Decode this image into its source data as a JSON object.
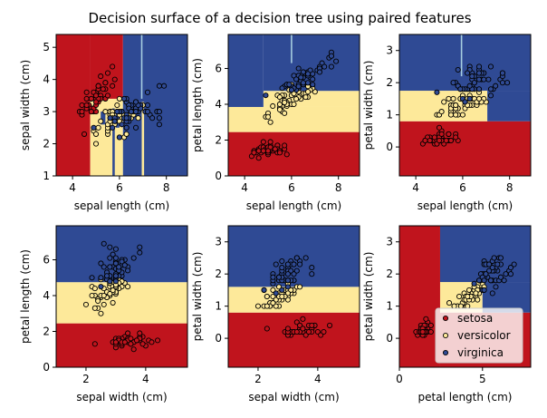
{
  "title": "Decision surface of a decision tree using paired features",
  "colors": {
    "setosa": "#c0141d",
    "versicolor": "#fde99a",
    "virginica": "#2f4a94",
    "split_line": "#a6cde0",
    "point_edge": "#000000"
  },
  "legend": {
    "position": "lower-right (last panel)",
    "items": [
      {
        "label": "setosa",
        "color": "#c0141d"
      },
      {
        "label": "versicolor",
        "color": "#fde99a"
      },
      {
        "label": "virginica",
        "color": "#2f4a94"
      }
    ]
  },
  "chart_data": [
    {
      "type": "scatter",
      "xlabel": "sepal length (cm)",
      "ylabel": "sepal width (cm)",
      "xlim": [
        3.3,
        8.9
      ],
      "ylim": [
        1.0,
        5.4
      ],
      "xticks": [
        4,
        6,
        8
      ],
      "yticks": [
        1,
        2,
        3,
        4,
        5
      ],
      "regions": [
        {
          "class": "setosa",
          "x": [
            3.3,
            4.75
          ],
          "y": [
            1.0,
            5.4
          ]
        },
        {
          "class": "versicolor",
          "x": [
            4.75,
            6.15
          ],
          "y": [
            1.0,
            3.4
          ]
        },
        {
          "class": "setosa",
          "x": [
            4.75,
            6.15
          ],
          "y": [
            3.4,
            5.4
          ]
        },
        {
          "class": "virginica",
          "x": [
            6.15,
            8.9
          ],
          "y": [
            1.0,
            5.4
          ]
        },
        {
          "class": "virginica",
          "x": [
            5.2,
            5.4
          ],
          "y": [
            2.6,
            3.0
          ]
        },
        {
          "class": "virginica",
          "x": [
            5.7,
            5.8
          ],
          "y": [
            1.0,
            3.1
          ]
        },
        {
          "class": "virginica",
          "x": [
            5.85,
            6.0
          ],
          "y": [
            2.5,
            3.0
          ]
        },
        {
          "class": "versicolor",
          "x": [
            6.95,
            7.05
          ],
          "y": [
            1.0,
            3.3
          ]
        }
      ],
      "lines": [
        {
          "x": [
            6.95,
            6.95
          ],
          "y": [
            3.4,
            5.4
          ]
        }
      ]
    },
    {
      "type": "scatter",
      "xlabel": "sepal length (cm)",
      "ylabel": "petal length (cm)",
      "xlim": [
        3.3,
        8.9
      ],
      "ylim": [
        0.0,
        7.9
      ],
      "xticks": [
        4,
        6,
        8
      ],
      "yticks": [
        0,
        2,
        4,
        6
      ],
      "regions": [
        {
          "class": "setosa",
          "x": [
            3.3,
            8.9
          ],
          "y": [
            0.0,
            2.45
          ]
        },
        {
          "class": "versicolor",
          "x": [
            3.3,
            8.9
          ],
          "y": [
            2.45,
            3.85
          ]
        },
        {
          "class": "versicolor",
          "x": [
            4.8,
            8.9
          ],
          "y": [
            3.85,
            4.75
          ]
        },
        {
          "class": "virginica",
          "x": [
            3.3,
            4.8
          ],
          "y": [
            3.85,
            7.9
          ]
        },
        {
          "class": "virginica",
          "x": [
            4.8,
            8.9
          ],
          "y": [
            4.75,
            7.9
          ]
        }
      ],
      "lines": [
        {
          "x": [
            6.0,
            6.0
          ],
          "y": [
            6.3,
            7.9
          ]
        }
      ]
    },
    {
      "type": "scatter",
      "xlabel": "sepal length (cm)",
      "ylabel": "petal width (cm)",
      "xlim": [
        3.3,
        8.9
      ],
      "ylim": [
        -0.9,
        3.5
      ],
      "xticks": [
        4,
        6,
        8
      ],
      "yticks": [
        0,
        1,
        2,
        3
      ],
      "regions": [
        {
          "class": "setosa",
          "x": [
            3.3,
            8.9
          ],
          "y": [
            -0.9,
            0.8
          ]
        },
        {
          "class": "versicolor",
          "x": [
            3.3,
            7.05
          ],
          "y": [
            0.8,
            1.75
          ]
        },
        {
          "class": "virginica",
          "x": [
            7.05,
            8.9
          ],
          "y": [
            0.8,
            1.75
          ]
        },
        {
          "class": "virginica",
          "x": [
            3.3,
            8.9
          ],
          "y": [
            1.75,
            3.5
          ]
        }
      ],
      "lines": [
        {
          "x": [
            5.95,
            5.95
          ],
          "y": [
            2.2,
            3.5
          ]
        }
      ]
    },
    {
      "type": "scatter",
      "xlabel": "sepal width (cm)",
      "ylabel": "petal length (cm)",
      "xlim": [
        1.0,
        5.4
      ],
      "ylim": [
        0.0,
        7.9
      ],
      "xticks": [
        2,
        4
      ],
      "yticks": [
        0,
        2,
        4,
        6
      ],
      "regions": [
        {
          "class": "setosa",
          "x": [
            1.0,
            5.4
          ],
          "y": [
            0.0,
            2.45
          ]
        },
        {
          "class": "versicolor",
          "x": [
            1.0,
            5.4
          ],
          "y": [
            2.45,
            4.75
          ]
        },
        {
          "class": "virginica",
          "x": [
            1.0,
            5.4
          ],
          "y": [
            4.75,
            7.9
          ]
        }
      ],
      "lines": []
    },
    {
      "type": "scatter",
      "xlabel": "sepal width (cm)",
      "ylabel": "petal width (cm)",
      "xlim": [
        1.0,
        5.4
      ],
      "ylim": [
        -0.9,
        3.5
      ],
      "xticks": [
        2,
        4
      ],
      "yticks": [
        0,
        1,
        2,
        3
      ],
      "regions": [
        {
          "class": "setosa",
          "x": [
            1.0,
            5.4
          ],
          "y": [
            -0.9,
            0.8
          ]
        },
        {
          "class": "versicolor",
          "x": [
            1.0,
            5.4
          ],
          "y": [
            0.8,
            1.6
          ]
        },
        {
          "class": "virginica",
          "x": [
            1.0,
            5.4
          ],
          "y": [
            1.6,
            3.5
          ]
        }
      ],
      "lines": []
    },
    {
      "type": "scatter",
      "xlabel": "petal length (cm)",
      "ylabel": "petal width (cm)",
      "xlim": [
        0.0,
        7.9
      ],
      "ylim": [
        -0.9,
        3.5
      ],
      "xticks": [
        0,
        5
      ],
      "yticks": [
        0,
        1,
        2,
        3
      ],
      "regions": [
        {
          "class": "setosa",
          "x": [
            0.0,
            2.45
          ],
          "y": [
            -0.9,
            3.5
          ]
        },
        {
          "class": "setosa",
          "x": [
            2.45,
            7.9
          ],
          "y": [
            -0.9,
            0.8
          ]
        },
        {
          "class": "versicolor",
          "x": [
            2.45,
            5.0
          ],
          "y": [
            0.8,
            1.75
          ]
        },
        {
          "class": "virginica",
          "x": [
            5.0,
            7.9
          ],
          "y": [
            0.8,
            1.75
          ]
        },
        {
          "class": "virginica",
          "x": [
            2.45,
            7.9
          ],
          "y": [
            1.75,
            3.5
          ]
        }
      ],
      "lines": [],
      "legend": true
    }
  ]
}
